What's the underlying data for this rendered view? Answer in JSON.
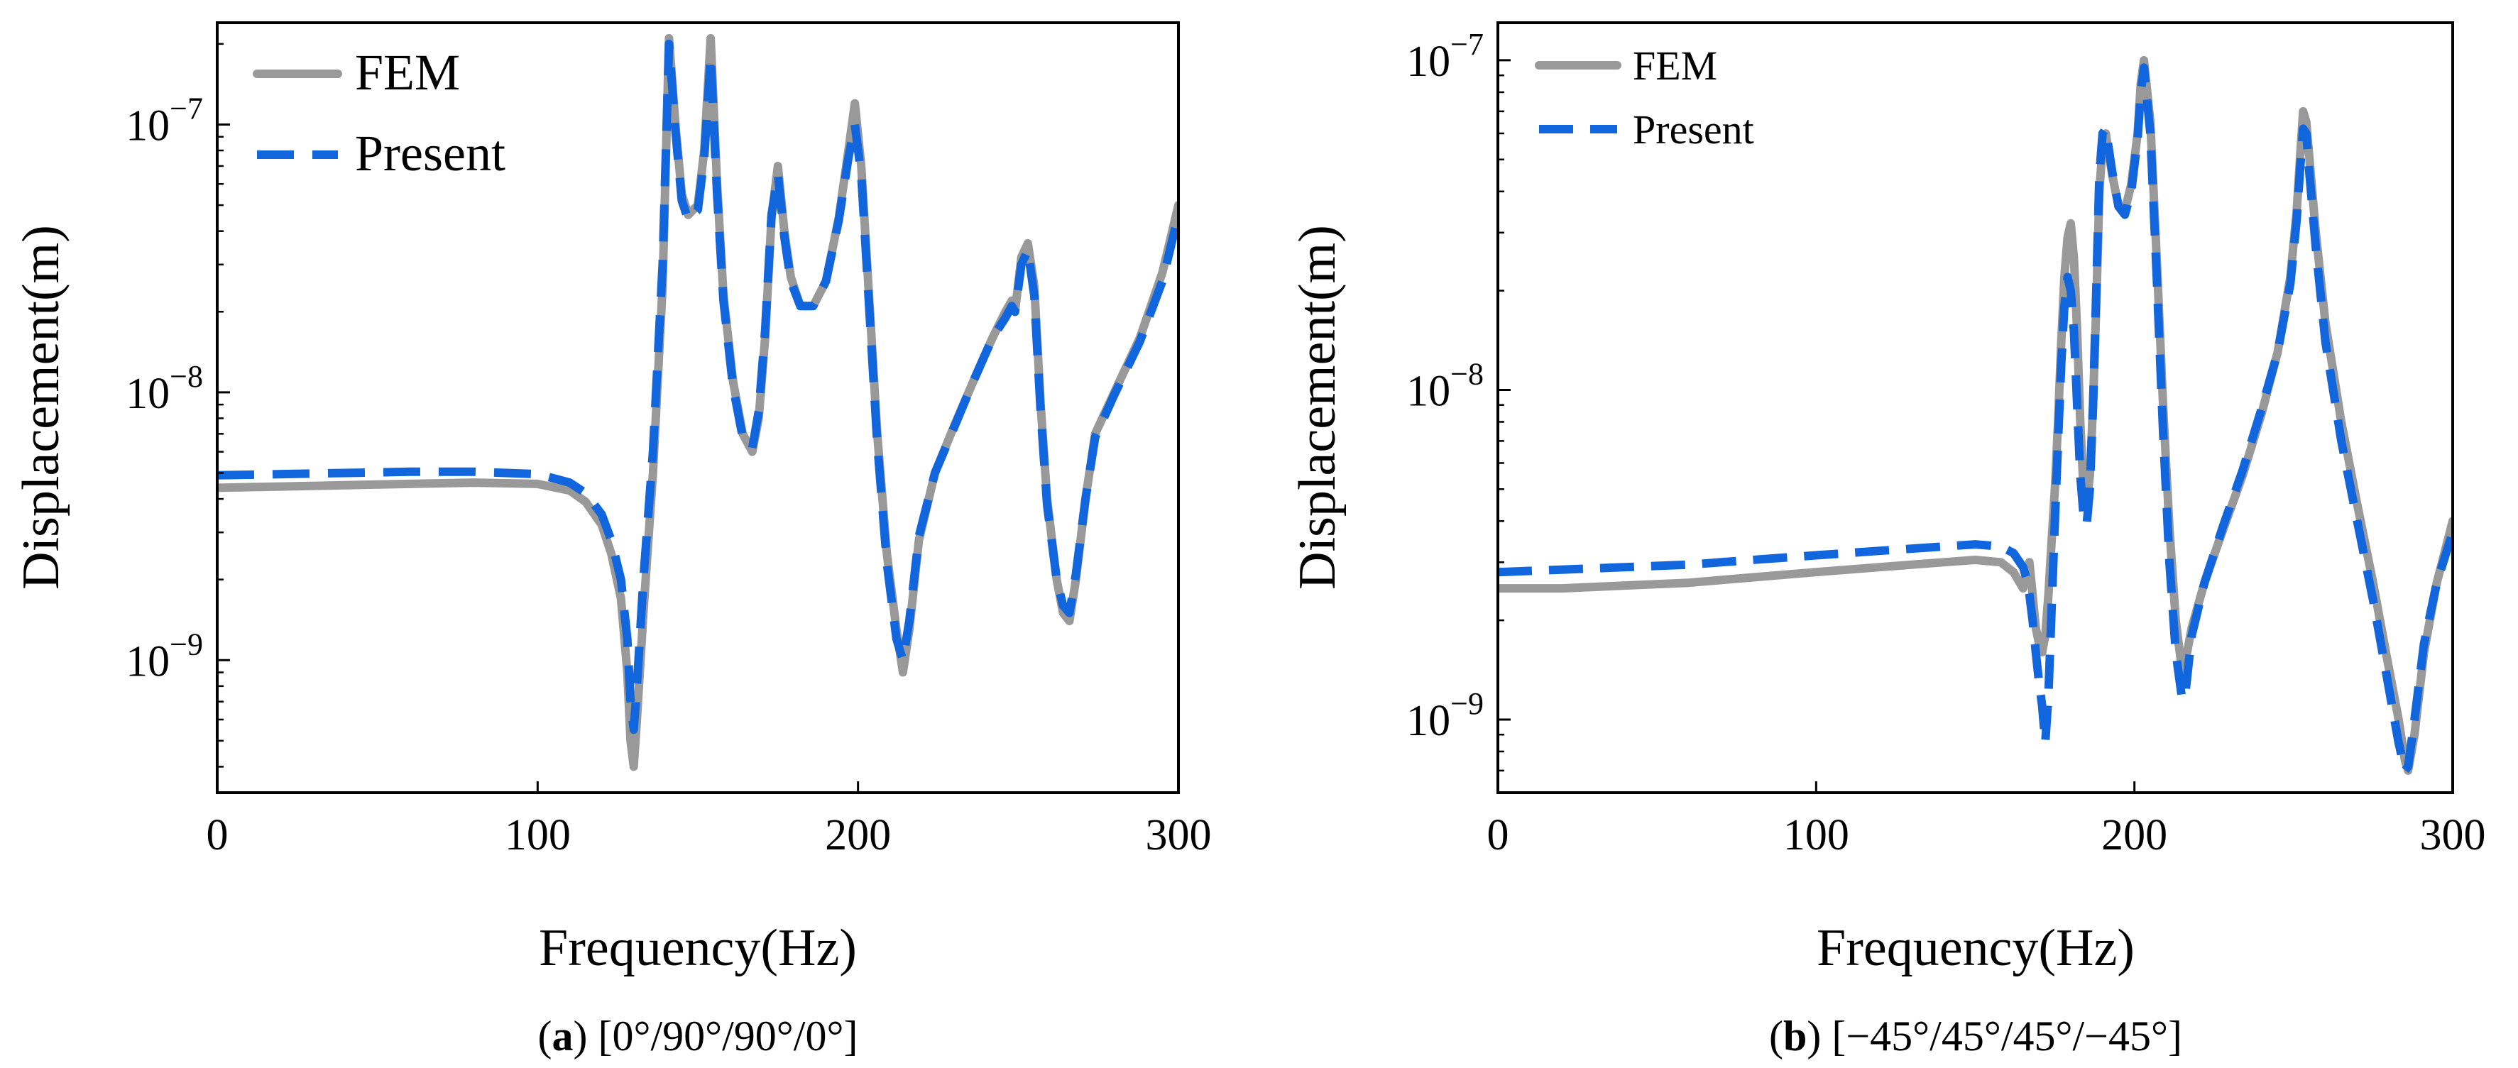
{
  "chart_data": [
    {
      "type": "line",
      "panel_letter": "a",
      "caption_rest": "[0°/90°/90°/0°]",
      "xlabel": "Frequency(Hz)",
      "ylabel": "Displacement(m)",
      "yscale": "log",
      "xlim": [
        0,
        300
      ],
      "ylim": [
        3.2e-10,
        2.4e-07
      ],
      "xticks": [
        0,
        100,
        200,
        300
      ],
      "yticks": [
        {
          "value": 1e-09,
          "base": "10",
          "exp": "−9"
        },
        {
          "value": 1e-08,
          "base": "10",
          "exp": "−8"
        },
        {
          "value": 1e-07,
          "base": "10",
          "exp": "−7"
        }
      ],
      "legend": {
        "position": "top-left"
      },
      "series": [
        {
          "name": "FEM",
          "color": "#999999",
          "style": "solid",
          "x": [
            0,
            20,
            40,
            60,
            80,
            100,
            110,
            115,
            120,
            123,
            126,
            128,
            129,
            130,
            131,
            133,
            136,
            139,
            141,
            143,
            145,
            147,
            150,
            152,
            154,
            156,
            158,
            161,
            164,
            167,
            169,
            171,
            173,
            175,
            177,
            179,
            182,
            186,
            190,
            194,
            197,
            199,
            201,
            203,
            206,
            209,
            212,
            214,
            216,
            219,
            224,
            230,
            236,
            242,
            246,
            248,
            249,
            251,
            253,
            255,
            257,
            259,
            262,
            264,
            266,
            268,
            271,
            274,
            280,
            288,
            295,
            300
          ],
          "y": [
            4.4e-09,
            4.45e-09,
            4.5e-09,
            4.55e-09,
            4.6e-09,
            4.55e-09,
            4.3e-09,
            3.9e-09,
            3.2e-09,
            2.5e-09,
            1.7e-09,
            9e-10,
            5e-10,
            4e-10,
            6e-10,
            1.5e-09,
            5e-09,
            2.5e-08,
            2.1e-07,
            1e-07,
            5.5e-08,
            4.6e-08,
            5e-08,
            8e-08,
            2.1e-07,
            6e-08,
            2.3e-08,
            1.1e-08,
            7e-09,
            6e-09,
            8e-09,
            1.6e-08,
            4.5e-08,
            7e-08,
            4e-08,
            2.7e-08,
            2.1e-08,
            2.1e-08,
            2.6e-08,
            4.5e-08,
            8e-08,
            1.2e-07,
            7e-08,
            2.8e-08,
            7e-09,
            2.5e-09,
            1.3e-09,
            9e-10,
            1.3e-09,
            2.8e-09,
            5e-09,
            7.5e-09,
            1.1e-08,
            1.6e-08,
            2e-08,
            2.2e-08,
            2e-08,
            3.2e-08,
            3.6e-08,
            2.5e-08,
            9e-09,
            4e-09,
            2e-09,
            1.5e-09,
            1.4e-09,
            2e-09,
            4e-09,
            7e-09,
            1e-08,
            1.6e-08,
            2.8e-08,
            5e-08
          ]
        },
        {
          "name": "Present",
          "color": "#1166DD",
          "style": "dashed",
          "x": [
            0,
            20,
            40,
            60,
            80,
            100,
            110,
            115,
            120,
            123,
            126,
            128,
            129,
            130,
            131,
            133,
            136,
            139,
            141,
            143,
            145,
            147,
            150,
            152,
            154,
            156,
            158,
            161,
            164,
            167,
            169,
            171,
            173,
            175,
            177,
            179,
            182,
            186,
            190,
            194,
            197,
            199,
            201,
            203,
            206,
            209,
            212,
            214,
            216,
            219,
            224,
            230,
            236,
            242,
            246,
            248,
            249,
            251,
            253,
            255,
            257,
            259,
            262,
            264,
            266,
            268,
            271,
            274,
            280,
            288,
            295,
            300
          ],
          "y": [
            4.9e-09,
            4.95e-09,
            5e-09,
            5.05e-09,
            5.05e-09,
            4.95e-09,
            4.6e-09,
            4.2e-09,
            3.5e-09,
            2.8e-09,
            2e-09,
            1.2e-09,
            7e-10,
            5.5e-10,
            8e-10,
            2e-09,
            6e-09,
            3e-08,
            2e-07,
            9.5e-08,
            5.2e-08,
            4.4e-08,
            4.8e-08,
            7.5e-08,
            1.8e-07,
            5.5e-08,
            2.2e-08,
            1.05e-08,
            6.8e-09,
            6.2e-09,
            8.5e-09,
            1.7e-08,
            4.6e-08,
            6.5e-08,
            3.8e-08,
            2.6e-08,
            2.1e-08,
            2.1e-08,
            2.6e-08,
            4.4e-08,
            7.5e-08,
            1e-07,
            6.5e-08,
            2.6e-08,
            6.5e-09,
            2.3e-09,
            1.2e-09,
            1e-09,
            1.4e-09,
            2.9e-09,
            5e-09,
            7.4e-09,
            1.1e-08,
            1.6e-08,
            1.9e-08,
            2.1e-08,
            2e-08,
            3e-08,
            3.4e-08,
            2.3e-08,
            8.5e-09,
            3.8e-09,
            2e-09,
            1.6e-09,
            1.5e-09,
            2.1e-09,
            4e-09,
            6.8e-09,
            9.8e-09,
            1.55e-08,
            2.6e-08,
            4.6e-08
          ]
        }
      ]
    },
    {
      "type": "line",
      "panel_letter": "b",
      "caption_rest": "[−45°/45°/45°/−45°]",
      "xlabel": "Frequency(Hz)",
      "ylabel": "Displacement(m)",
      "yscale": "log",
      "xlim": [
        0,
        300
      ],
      "ylim": [
        6e-10,
        1.3e-07
      ],
      "xticks": [
        0,
        100,
        200,
        300
      ],
      "yticks": [
        {
          "value": 1e-09,
          "base": "10",
          "exp": "−9"
        },
        {
          "value": 1e-08,
          "base": "10",
          "exp": "−8"
        },
        {
          "value": 1e-07,
          "base": "10",
          "exp": "−7"
        }
      ],
      "legend": {
        "position": "top-left"
      },
      "series": [
        {
          "name": "FEM",
          "color": "#999999",
          "style": "solid",
          "x": [
            0,
            20,
            40,
            60,
            80,
            100,
            120,
            140,
            150,
            158,
            162,
            165,
            166,
            167,
            168,
            169,
            170,
            171,
            172,
            173,
            174,
            175,
            176,
            177,
            178,
            179,
            180,
            181,
            182,
            183,
            184,
            185,
            186,
            187,
            188,
            189,
            190,
            191,
            193,
            195,
            197,
            199,
            201,
            202,
            203,
            205,
            207,
            209,
            211,
            213,
            215,
            216,
            218,
            222,
            228,
            234,
            240,
            245,
            249,
            251,
            252,
            253,
            254,
            255,
            257,
            260,
            265,
            270,
            275,
            279,
            283,
            285,
            286,
            288,
            291,
            295,
            300
          ],
          "y": [
            2.5e-09,
            2.5e-09,
            2.55e-09,
            2.6e-09,
            2.7e-09,
            2.8e-09,
            2.9e-09,
            3e-09,
            3.05e-09,
            3e-09,
            2.8e-09,
            2.5e-09,
            2.8e-09,
            3e-09,
            2.4e-09,
            1.9e-09,
            1.7e-09,
            1.6e-09,
            1.8e-09,
            2.4e-09,
            3.5e-09,
            5e-09,
            8e-09,
            1.4e-08,
            2.2e-08,
            2.9e-08,
            3.2e-08,
            2.5e-08,
            1.5e-08,
            8e-09,
            5e-09,
            4.5e-09,
            5.5e-09,
            9e-09,
            1.8e-08,
            4e-08,
            5.5e-08,
            6e-08,
            4.5e-08,
            3.6e-08,
            3.5e-08,
            4.2e-08,
            6e-08,
            8.5e-08,
            1e-07,
            6.5e-08,
            2.5e-08,
            9e-09,
            3.8e-09,
            2e-09,
            1.4e-09,
            1.5e-09,
            1.9e-09,
            2.6e-09,
            3.8e-09,
            5.5e-09,
            8.5e-09,
            1.3e-08,
            2.2e-08,
            3.5e-08,
            5e-08,
            7e-08,
            6.5e-08,
            5e-08,
            3e-08,
            1.6e-08,
            8e-09,
            4.5e-09,
            2.6e-09,
            1.6e-09,
            1e-09,
            7.5e-10,
            7e-10,
            9e-10,
            1.6e-09,
            2.6e-09,
            4e-09
          ]
        },
        {
          "name": "Present",
          "color": "#1166DD",
          "style": "dashed",
          "x": [
            0,
            20,
            40,
            60,
            80,
            100,
            120,
            140,
            150,
            158,
            162,
            165,
            166,
            167,
            168,
            169,
            170,
            171,
            172,
            173,
            174,
            175,
            176,
            177,
            178,
            179,
            180,
            181,
            182,
            183,
            184,
            185,
            186,
            187,
            188,
            189,
            190,
            191,
            193,
            195,
            197,
            199,
            201,
            202,
            203,
            205,
            207,
            209,
            211,
            213,
            215,
            216,
            218,
            222,
            228,
            234,
            240,
            245,
            249,
            251,
            252,
            253,
            254,
            255,
            257,
            260,
            265,
            270,
            275,
            279,
            283,
            285,
            286,
            288,
            291,
            295,
            300
          ],
          "y": [
            2.8e-09,
            2.85e-09,
            2.9e-09,
            2.95e-09,
            3.05e-09,
            3.15e-09,
            3.25e-09,
            3.35e-09,
            3.4e-09,
            3.35e-09,
            3.2e-09,
            2.9e-09,
            2.7e-09,
            2.4e-09,
            2e-09,
            1.6e-09,
            1.3e-09,
            1.1e-09,
            8.5e-10,
            1.2e-09,
            2.2e-09,
            4e-09,
            7e-09,
            1.2e-08,
            1.8e-08,
            2.2e-08,
            2e-08,
            1.5e-08,
            9e-09,
            5.5e-09,
            4.2e-09,
            3.9e-09,
            5e-09,
            9e-09,
            2e-08,
            4.5e-08,
            6e-08,
            6.2e-08,
            4.6e-08,
            3.6e-08,
            3.4e-08,
            4e-08,
            5.8e-08,
            8e-08,
            9.5e-08,
            6e-08,
            2.2e-08,
            7.5e-09,
            3e-09,
            1.6e-09,
            1.15e-09,
            1.2e-09,
            1.8e-09,
            2.6e-09,
            3.9e-09,
            5.7e-09,
            8.8e-09,
            1.3e-08,
            2.1e-08,
            3.3e-08,
            4.6e-08,
            6.2e-08,
            6e-08,
            4.5e-08,
            2.7e-08,
            1.4e-08,
            7e-09,
            4e-09,
            2.3e-09,
            1.4e-09,
            8.5e-10,
            7e-10,
            7.2e-10,
            1e-09,
            1.7e-09,
            2.6e-09,
            3.7e-09
          ]
        }
      ]
    }
  ]
}
